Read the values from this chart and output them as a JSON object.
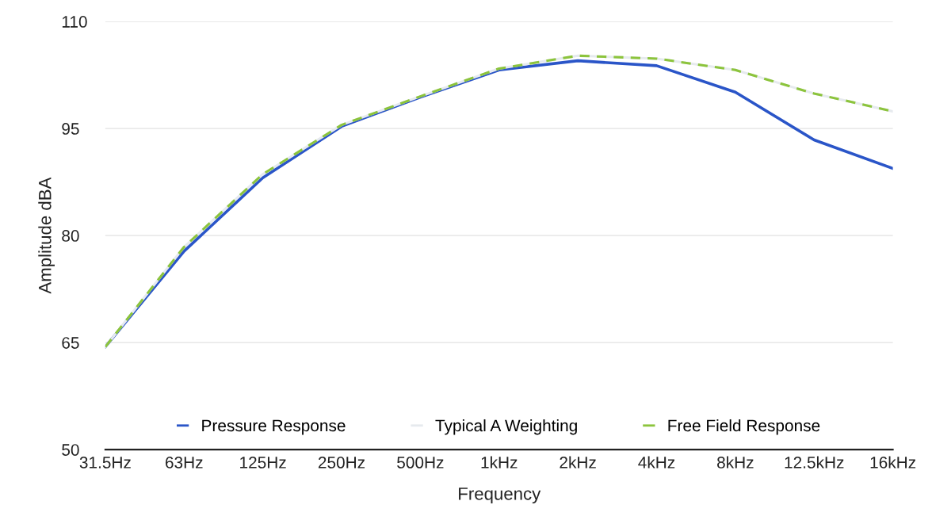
{
  "chart_data": {
    "type": "line",
    "xlabel": "Frequency",
    "ylabel": "Amplitude dBA",
    "categories": [
      "31.5Hz",
      "63Hz",
      "125Hz",
      "250Hz",
      "500Hz",
      "1kHz",
      "2kHz",
      "4kHz",
      "8kHz",
      "12.5kHz",
      "16kHz"
    ],
    "series": [
      {
        "name": "Pressure Response",
        "color": "#2a55c8",
        "line_style": "solid",
        "values": [
          64.4,
          77.8,
          88.1,
          95.3,
          99.4,
          103.2,
          104.5,
          103.8,
          100.1,
          93.4,
          89.4
        ]
      },
      {
        "name": "Typical A Weighting",
        "color": "#e6eaee",
        "line_style": "solid",
        "values": [
          64.4,
          78.4,
          88.6,
          95.5,
          99.5,
          103.4,
          105.2,
          104.8,
          103.2,
          99.9,
          97.4
        ]
      },
      {
        "name": "Free Field Response",
        "color": "#8cc43c",
        "line_style": "dashed",
        "values": [
          64.4,
          78.4,
          88.6,
          95.5,
          99.5,
          103.4,
          105.2,
          104.8,
          103.2,
          99.9,
          97.4
        ]
      }
    ],
    "ylim": [
      50,
      110
    ],
    "yticks": [
      50,
      65,
      80,
      95,
      110
    ],
    "grid": "y",
    "legend": "bottom",
    "marker": "none"
  }
}
